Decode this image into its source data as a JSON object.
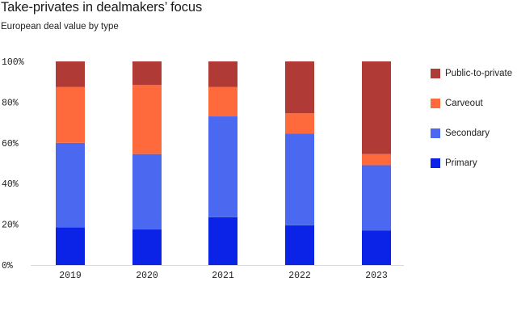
{
  "chart_data": {
    "type": "bar",
    "stacked": true,
    "title": "Take-privates in dealmakers’ focus",
    "subtitle": "European deal value by type",
    "categories": [
      "2019",
      "2020",
      "2021",
      "2022",
      "2023"
    ],
    "y_ticks": [
      "100%",
      "80%",
      "60%",
      "40%",
      "20%",
      "0%"
    ],
    "ylim": [
      0,
      100
    ],
    "series": [
      {
        "name": "Primary",
        "color": "#0a23e6",
        "values": [
          18.5,
          17.5,
          23.5,
          19.5,
          17
        ]
      },
      {
        "name": "Secondary",
        "color": "#4b69f0",
        "values": [
          41.5,
          37,
          49.5,
          45,
          32
        ]
      },
      {
        "name": "Carveout",
        "color": "#ff6a3d",
        "values": [
          27.5,
          34,
          14.5,
          10,
          5.5
        ]
      },
      {
        "name": "Public-to-private",
        "color": "#b03a35",
        "values": [
          12.5,
          11.5,
          12.5,
          25.5,
          45.5
        ]
      }
    ],
    "legend_order": [
      "Public-to-private",
      "Carveout",
      "Secondary",
      "Primary"
    ],
    "legend_position": "right",
    "grid": false
  }
}
